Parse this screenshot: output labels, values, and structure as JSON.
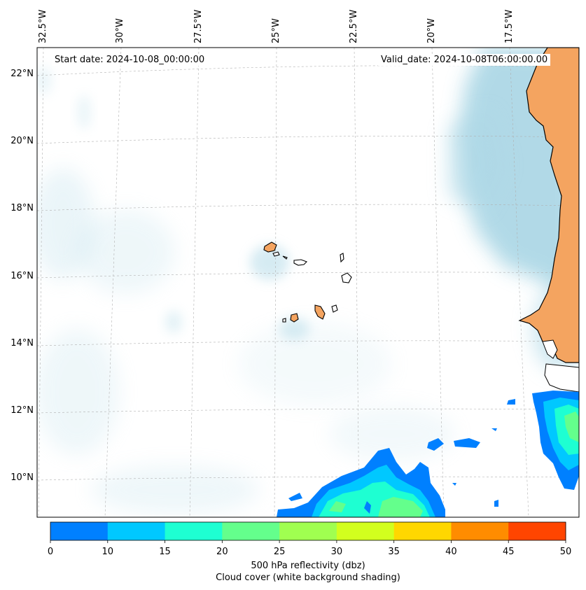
{
  "map": {
    "start_date": "Start date: 2024-10-08_00:00:00",
    "valid_date": "Valid_date: 2024-10-08T06:00:00.00",
    "lon_labels": [
      "32.5°W",
      "30°W",
      "27.5°W",
      "25°W",
      "22.5°W",
      "20°W",
      "17.5°W"
    ],
    "lat_labels": [
      "22°N",
      "20°N",
      "18°N",
      "16°N",
      "14°N",
      "12°N",
      "10°N"
    ],
    "colors": {
      "land": "#f4a460",
      "cloud": "#add8e6",
      "coast": "#000000",
      "grid": "#b0b0b0"
    }
  },
  "colorbar": {
    "ticks": [
      "0",
      "10",
      "15",
      "20",
      "25",
      "30",
      "35",
      "40",
      "45",
      "50"
    ],
    "colors": [
      "#0080ff",
      "#00c8ff",
      "#1effd2",
      "#64ff8c",
      "#a0ff50",
      "#d2ff1e",
      "#ffd700",
      "#ff8c00",
      "#ff4500"
    ],
    "label_line1": "500 hPa reflectivity (dbz)",
    "label_line2": "Cloud cover (white background shading)"
  }
}
